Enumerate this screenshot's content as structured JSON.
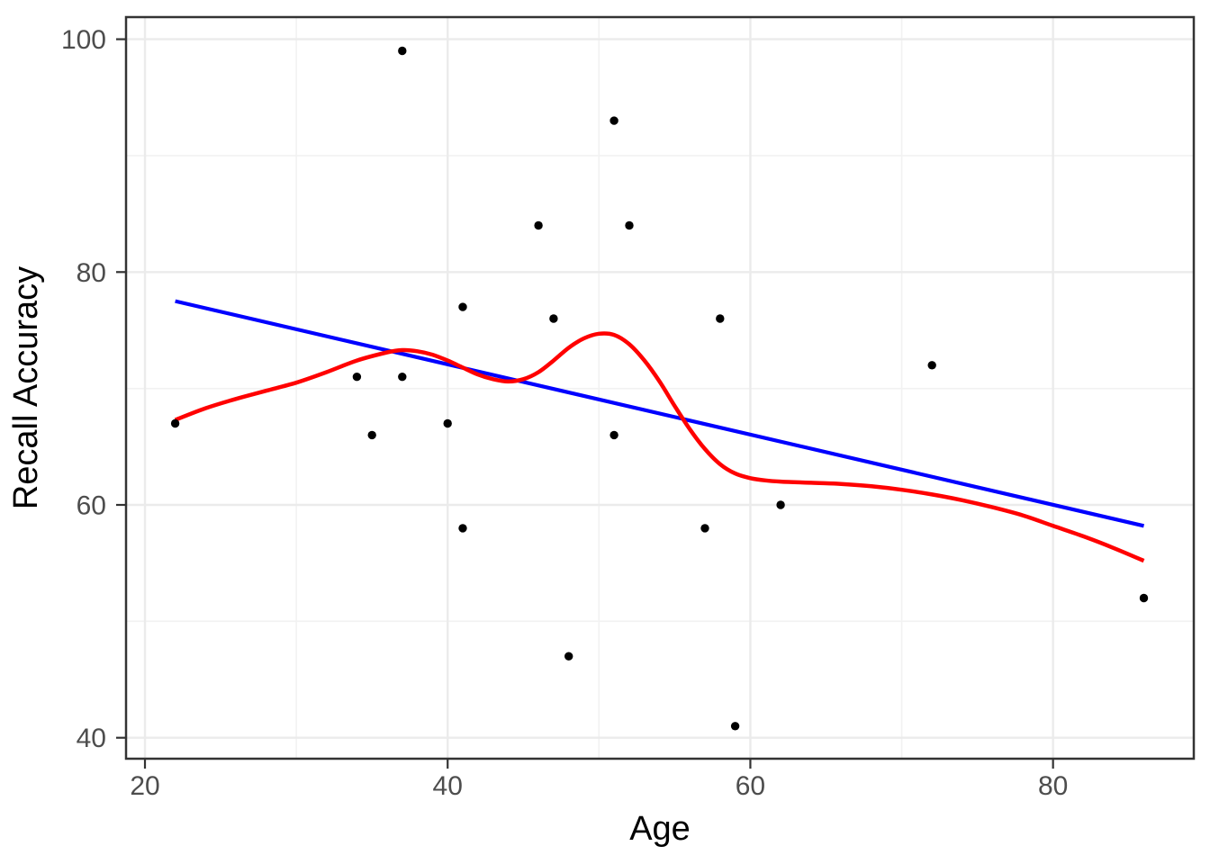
{
  "chart_data": {
    "type": "scatter",
    "title": "",
    "xlabel": "Age",
    "ylabel": "Recall Accuracy",
    "xlim": [
      18.75,
      89.3
    ],
    "ylim": [
      38.2,
      101.9
    ],
    "x_major_ticks": [
      20,
      40,
      60,
      80
    ],
    "x_minor_ticks": [
      30,
      50,
      70
    ],
    "y_major_ticks": [
      40,
      60,
      80,
      100
    ],
    "y_minor_ticks": [
      50,
      70,
      90
    ],
    "grid": "major+minor",
    "legend": "none",
    "points": [
      [
        22,
        67
      ],
      [
        34,
        71
      ],
      [
        35,
        66
      ],
      [
        37,
        71
      ],
      [
        37,
        99
      ],
      [
        40,
        67
      ],
      [
        41,
        58
      ],
      [
        41,
        77
      ],
      [
        46,
        84
      ],
      [
        47,
        76
      ],
      [
        48,
        47
      ],
      [
        51,
        66
      ],
      [
        51,
        93
      ],
      [
        52,
        84
      ],
      [
        57,
        58
      ],
      [
        58,
        76
      ],
      [
        59,
        41
      ],
      [
        62,
        60
      ],
      [
        72,
        72
      ],
      [
        86,
        52
      ]
    ],
    "series": [
      {
        "name": "linear-fit",
        "line_type": "straight",
        "color": "#0000FF",
        "points": [
          [
            22,
            77.5
          ],
          [
            86,
            58.2
          ]
        ]
      },
      {
        "name": "loess-fit",
        "line_type": "smooth",
        "color": "#FF0000",
        "points": [
          [
            22,
            67.3
          ],
          [
            24,
            68.3
          ],
          [
            26,
            69.1
          ],
          [
            28,
            69.8
          ],
          [
            30,
            70.5
          ],
          [
            32,
            71.4
          ],
          [
            34,
            72.4
          ],
          [
            36,
            73.1
          ],
          [
            37,
            73.3
          ],
          [
            38,
            73.2
          ],
          [
            39,
            72.9
          ],
          [
            40,
            72.4
          ],
          [
            41,
            71.8
          ],
          [
            42,
            71.2
          ],
          [
            43,
            70.8
          ],
          [
            44,
            70.6
          ],
          [
            45,
            70.8
          ],
          [
            46,
            71.4
          ],
          [
            47,
            72.4
          ],
          [
            48,
            73.5
          ],
          [
            49,
            74.3
          ],
          [
            50,
            74.7
          ],
          [
            51,
            74.6
          ],
          [
            52,
            73.8
          ],
          [
            53,
            72.4
          ],
          [
            54,
            70.6
          ],
          [
            55,
            68.5
          ],
          [
            56,
            66.5
          ],
          [
            57,
            64.8
          ],
          [
            58,
            63.5
          ],
          [
            59,
            62.7
          ],
          [
            60,
            62.3
          ],
          [
            61,
            62.1
          ],
          [
            62,
            62.0
          ],
          [
            64,
            61.9
          ],
          [
            66,
            61.8
          ],
          [
            68,
            61.6
          ],
          [
            70,
            61.3
          ],
          [
            72,
            60.9
          ],
          [
            74,
            60.4
          ],
          [
            76,
            59.8
          ],
          [
            78,
            59.1
          ],
          [
            80,
            58.2
          ],
          [
            82,
            57.3
          ],
          [
            84,
            56.3
          ],
          [
            86,
            55.2
          ]
        ]
      }
    ],
    "colors": {
      "point": "#000000",
      "linear_fit": "#0000FF",
      "loess_fit": "#FF0000",
      "grid_major": "#EBEBEB",
      "grid_minor": "#F2F2F2",
      "panel_border": "#333333",
      "tick_mark": "#333333",
      "tick_label": "#4D4D4D",
      "axis_title": "#000000",
      "panel_background": "#FFFFFF"
    }
  }
}
